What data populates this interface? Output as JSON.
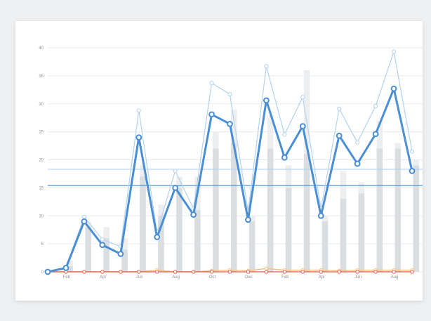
{
  "chart_data": {
    "type": "bar",
    "title": "",
    "xlabel": "",
    "ylabel": "",
    "ylim": [
      0,
      40
    ],
    "grid": true,
    "y_ticks": [
      "0",
      "5",
      "10",
      "15",
      "20",
      "25",
      "30",
      "35",
      "40"
    ],
    "x_tick_labels": [
      {
        "index": 1,
        "label": "Feb"
      },
      {
        "index": 3,
        "label": "Apr"
      },
      {
        "index": 5,
        "label": "Jun"
      },
      {
        "index": 7,
        "label": "Aug"
      },
      {
        "index": 9,
        "label": "Oct"
      },
      {
        "index": 11,
        "label": "Dec"
      },
      {
        "index": 13,
        "label": "Feb"
      },
      {
        "index": 15,
        "label": "Apr"
      },
      {
        "index": 17,
        "label": "Jun"
      },
      {
        "index": 19,
        "label": "Aug"
      }
    ],
    "bars_light": [
      0,
      2,
      9,
      8,
      6,
      19,
      12,
      17,
      17,
      25,
      29,
      10,
      28,
      19,
      36,
      10,
      18,
      16,
      27,
      23,
      20
    ],
    "bars_dark": [
      0,
      1,
      8,
      6,
      4,
      17,
      10,
      15,
      11,
      22,
      23,
      9,
      22,
      15,
      21,
      9,
      13,
      14,
      22,
      22,
      19
    ],
    "series": [
      {
        "values": [
          0,
          0.7,
          9,
          4.8,
          3.2,
          24,
          6.2,
          15,
          10.2,
          28.1,
          26.4,
          9.3,
          30.6,
          20.4,
          26,
          10,
          24.3,
          19.3,
          24.6,
          32.7,
          18
        ]
      },
      {
        "values": [
          0,
          0.8,
          9.8,
          5.8,
          4.5,
          28.8,
          7.1,
          18,
          11.3,
          33.7,
          31.7,
          10.8,
          36.7,
          24.5,
          31.2,
          11.3,
          29.1,
          23.1,
          29.6,
          39.3,
          21.5
        ]
      },
      {
        "values": [
          0,
          0,
          0,
          0,
          0,
          0,
          0.3,
          0,
          0,
          0.2,
          0.3,
          0.2,
          0.6,
          0.3,
          0.3,
          0.3,
          0.2,
          0.3,
          0.3,
          0.3,
          0.3
        ]
      },
      {
        "values": [
          0,
          0,
          0,
          0,
          0,
          0,
          0,
          0,
          0,
          0,
          0,
          0,
          0,
          0,
          0,
          0,
          0,
          0,
          0,
          0,
          0
        ]
      }
    ],
    "reference_lines": [
      18.3,
      15.4
    ],
    "colors": {
      "bar_light": "#eceef0",
      "bar_dark": "#dadee1",
      "main_line": "#4a8fd4",
      "faint_line": "#b3d2ee",
      "orange_line": "#f5c07a",
      "red_line": "#e05b4f",
      "ref_line_1": "#a8cdee",
      "ref_line_2": "#4a8fd4",
      "grid": "#e7eaed",
      "tick_text": "#8a8f96"
    }
  }
}
